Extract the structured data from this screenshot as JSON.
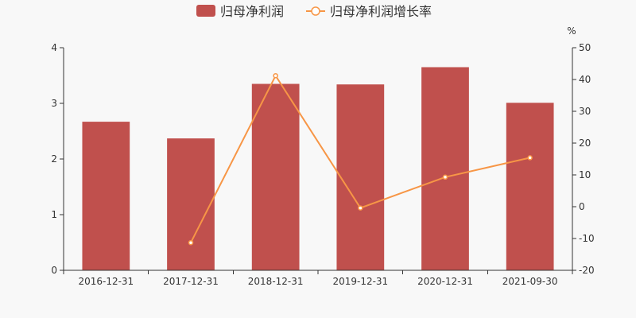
{
  "chart_data": {
    "type": "bar",
    "categories": [
      "2016-12-31",
      "2017-12-31",
      "2018-12-31",
      "2019-12-31",
      "2020-12-31",
      "2021-09-30"
    ],
    "series": [
      {
        "name": "归母净利润",
        "type": "bar",
        "axis": "left",
        "color": "#c0504d",
        "values": [
          2.67,
          2.37,
          3.35,
          3.34,
          3.65,
          3.01
        ]
      },
      {
        "name": "归母净利润增长率",
        "type": "line",
        "axis": "right",
        "color": "#f79646",
        "values": [
          null,
          -11.3,
          41.2,
          -0.4,
          9.3,
          15.4
        ]
      }
    ],
    "y_left": {
      "ylim": [
        0,
        4
      ],
      "ticks": [
        "0",
        "1",
        "2",
        "3",
        "4"
      ]
    },
    "y_right": {
      "ylim": [
        -20,
        50
      ],
      "unit": "%",
      "ticks": [
        "-20",
        "-10",
        "0",
        "10",
        "20",
        "30",
        "40",
        "50"
      ]
    },
    "legend": "top-center",
    "grid": false
  }
}
